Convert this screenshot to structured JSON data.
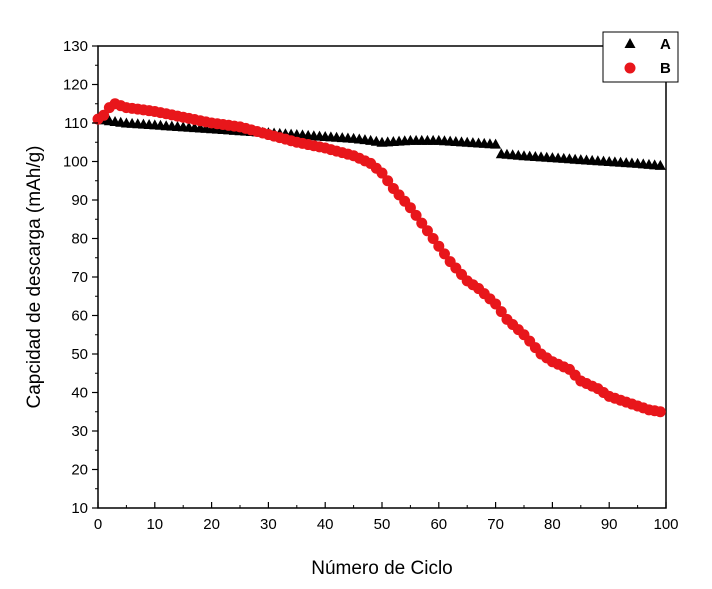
{
  "chart_data": {
    "type": "scatter",
    "xlabel": "Número de Ciclo",
    "ylabel": "Capcidad de descarga (mAh/g)",
    "xlim": [
      0,
      100
    ],
    "ylim": [
      10,
      130
    ],
    "x_ticks": [
      "0",
      "10",
      "20",
      "30",
      "40",
      "50",
      "60",
      "70",
      "80",
      "90",
      "100"
    ],
    "y_ticks": [
      "10",
      "20",
      "30",
      "40",
      "50",
      "60",
      "70",
      "80",
      "90",
      "100",
      "110",
      "120",
      "130"
    ],
    "grid": false,
    "legend_position": "top-right",
    "series": [
      {
        "name": "A",
        "marker": "triangle",
        "color": "#000000",
        "x": [
          0,
          5,
          10,
          15,
          20,
          25,
          30,
          35,
          40,
          45,
          48,
          50,
          55,
          60,
          65,
          70,
          71,
          75,
          80,
          85,
          90,
          95,
          99
        ],
        "y": [
          111,
          110,
          109.5,
          109,
          108.5,
          108,
          107.5,
          107,
          106.5,
          106,
          105.5,
          105,
          105.5,
          105.5,
          105,
          104.5,
          102,
          101.5,
          101,
          100.5,
          100,
          99.5,
          99
        ]
      },
      {
        "name": "B",
        "marker": "circle",
        "color": "#e8161b",
        "x": [
          0,
          1,
          2,
          3,
          5,
          10,
          15,
          20,
          25,
          30,
          35,
          40,
          45,
          48,
          50,
          52,
          55,
          58,
          60,
          62,
          65,
          67,
          70,
          72,
          75,
          78,
          80,
          83,
          85,
          88,
          90,
          92,
          95,
          97,
          99
        ],
        "y": [
          111,
          112,
          114,
          115,
          114,
          113,
          111.5,
          110,
          109,
          107,
          105,
          103.5,
          101.5,
          99.5,
          97,
          93,
          88,
          82,
          78,
          74,
          69,
          67,
          63,
          59,
          55,
          50,
          48,
          46,
          43,
          41,
          39,
          38,
          36.5,
          35.5,
          35
        ]
      }
    ]
  }
}
